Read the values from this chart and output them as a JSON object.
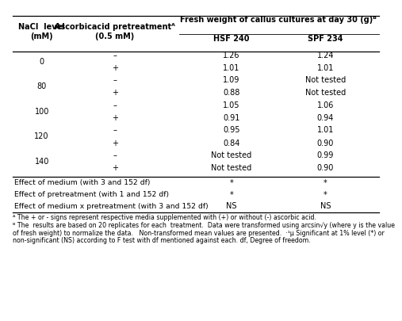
{
  "header1_line1": "NaCl  level",
  "header1_line2": "(mM)",
  "header2_line1": "Ascorbicacid pretreatmentᴬ",
  "header2_line2": "(0.5 mM)",
  "header3_main": "Fresh weight of callus cultures at day 30 (g)ᴮ",
  "header3_sub1": "HSF 240",
  "header3_sub2": "SPF 234",
  "groups": [
    {
      "nacl": "0",
      "rows": [
        [
          "–",
          "1.26",
          "1.24"
        ],
        [
          "+",
          "1.01",
          "1.01"
        ]
      ]
    },
    {
      "nacl": "80",
      "rows": [
        [
          "–",
          "1.09",
          "Not tested"
        ],
        [
          "+",
          "0.88",
          "Not tested"
        ]
      ]
    },
    {
      "nacl": "100",
      "rows": [
        [
          "–",
          "1.05",
          "1.06"
        ],
        [
          "+",
          "0.91",
          "0.94"
        ]
      ]
    },
    {
      "nacl": "120",
      "rows": [
        [
          "–",
          "0.95",
          "1.01"
        ],
        [
          "+",
          "0.84",
          "0.90"
        ]
      ]
    },
    {
      "nacl": "140",
      "rows": [
        [
          "–",
          "Not tested",
          "0.99"
        ],
        [
          "+",
          "Not tested",
          "0.90"
        ]
      ]
    }
  ],
  "effects": [
    {
      "label": "Effect of medium (with 3 and 152 df)",
      "hsf": "*",
      "spf": "*"
    },
    {
      "label": "Effect of pretreatment (with 1 and 152 df)",
      "hsf": "*",
      "spf": "*"
    },
    {
      "label": "Effect of medium x pretreatment (with 3 and 152 df)",
      "hsf": "NS",
      "spf": "NS"
    }
  ],
  "fn_a": "ᴬ The + or - signs represent respective media supplemented with (+) or without (-) ascorbic acid.",
  "fn_b1": "ᴮ The  results are based on 20 replicates for each  treatment.  Data were transformed using arcsin√y (where y is the value",
  "fn_b2": "of fresh weight) to normalize the data.   Non-transformed mean values are presented.  ·¹µ Significant at 1% level (*) or",
  "fn_b3": "non-significant (NS) according to F test with df mentioned against each. df, Degree of freedom.",
  "col_nacl": 0.09,
  "col_pre": 0.285,
  "col_hsf": 0.595,
  "col_spf": 0.845,
  "lm": 0.012,
  "rm": 0.988,
  "bg": "#ffffff",
  "fc": "#000000",
  "fs": 7.0
}
